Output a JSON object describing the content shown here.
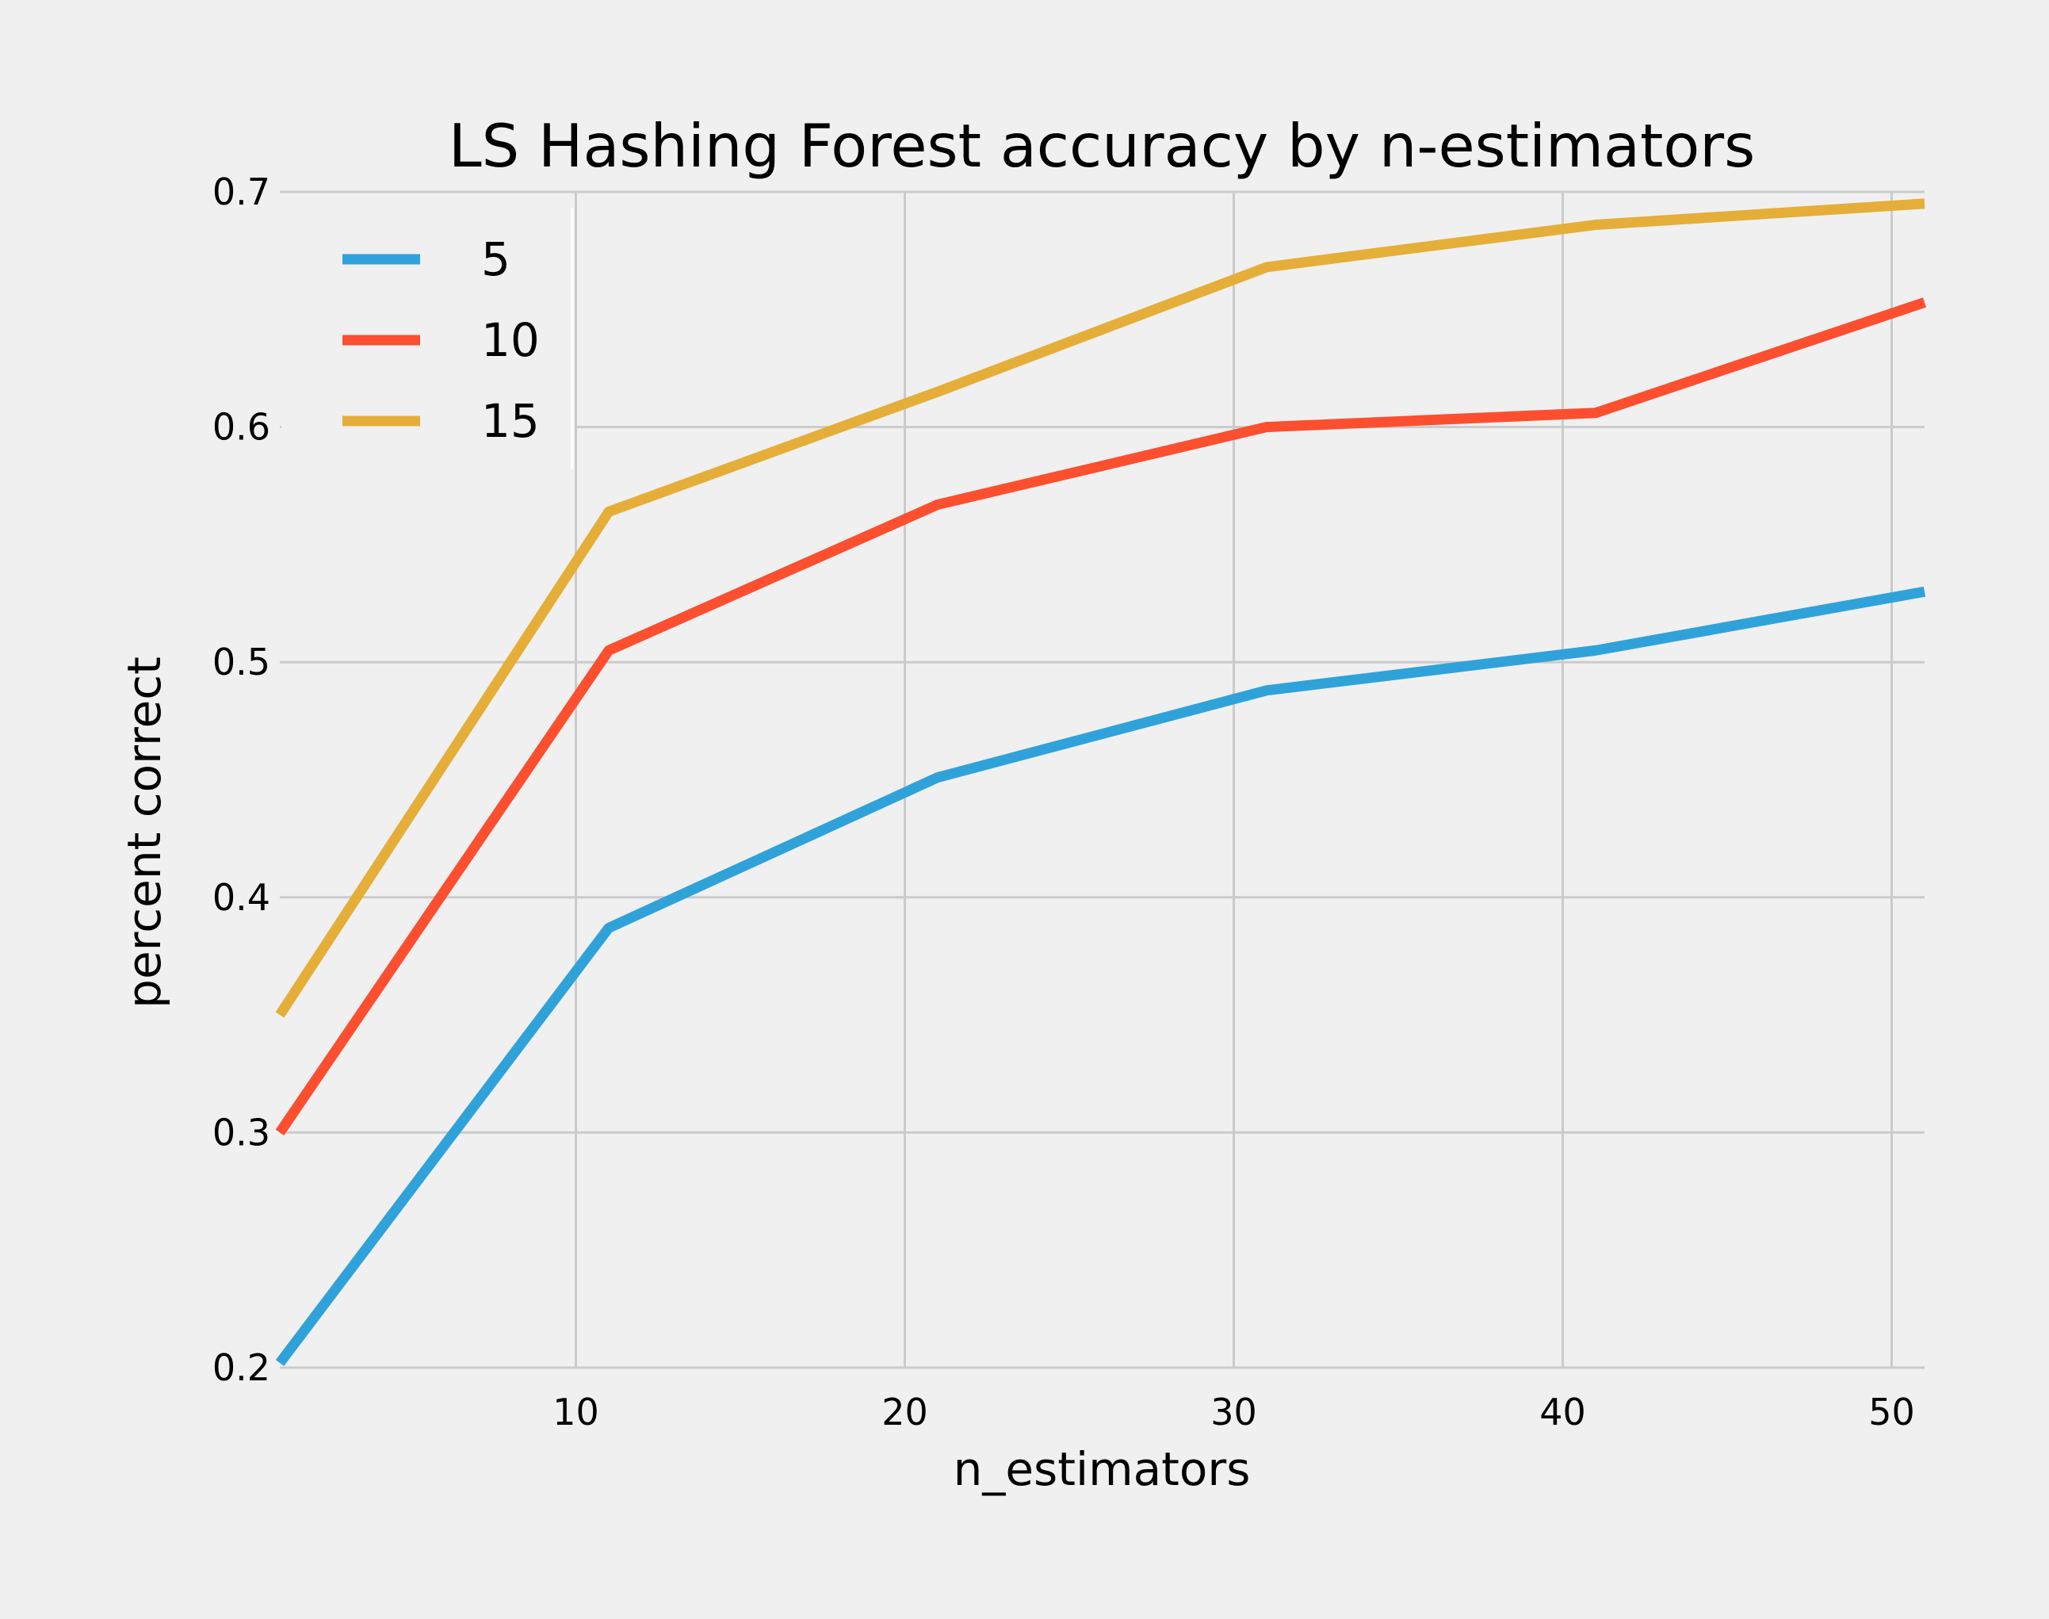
{
  "chart_data": {
    "type": "line",
    "title": "LS Hashing Forest accuracy by n-estimators",
    "xlabel": "n_estimators",
    "ylabel": "percent correct",
    "xlim": [
      1,
      51
    ],
    "ylim": [
      0.2,
      0.7
    ],
    "xticks": [
      10,
      20,
      30,
      40,
      50
    ],
    "xtick_labels": [
      "10",
      "20",
      "30",
      "40",
      "50"
    ],
    "yticks": [
      0.2,
      0.3,
      0.4,
      0.5,
      0.6,
      0.7
    ],
    "ytick_labels": [
      "0.2",
      "0.3",
      "0.4",
      "0.5",
      "0.6",
      "0.7"
    ],
    "grid": true,
    "legend_position": "top-left",
    "x": [
      1,
      11,
      21,
      31,
      41,
      51
    ],
    "series": [
      {
        "name": "5",
        "color": "#30a2da",
        "values": [
          0.202,
          0.387,
          0.451,
          0.488,
          0.505,
          0.53
        ]
      },
      {
        "name": "10",
        "color": "#fc4f30",
        "values": [
          0.3,
          0.505,
          0.567,
          0.6,
          0.606,
          0.653
        ]
      },
      {
        "name": "15",
        "color": "#e5ae38",
        "values": [
          0.35,
          0.564,
          0.615,
          0.668,
          0.686,
          0.695
        ]
      }
    ]
  }
}
